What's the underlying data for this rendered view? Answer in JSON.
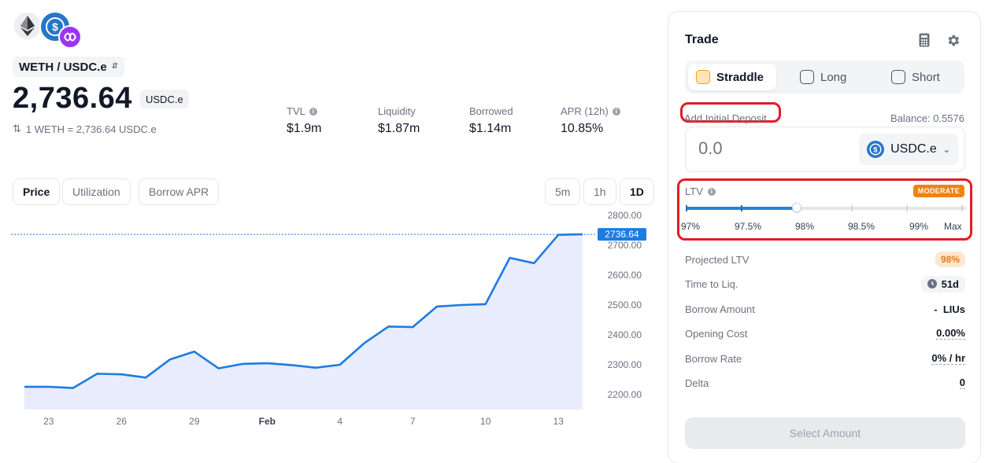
{
  "pair": {
    "label": "WETH / USDC.e"
  },
  "price": {
    "value": "2,736.64",
    "unit": "USDC.e",
    "rate": "1 WETH = 2,736.64 USDC.e"
  },
  "stats": [
    {
      "label": "TVL",
      "value": "$1.9m",
      "info": true
    },
    {
      "label": "Liquidity",
      "value": "$1.87m",
      "info": false
    },
    {
      "label": "Borrowed",
      "value": "$1.14m",
      "info": false
    },
    {
      "label": "APR (12h)",
      "value": "10.85%",
      "info": true
    }
  ],
  "chart_tabs": [
    "Price",
    "Utilization",
    "Borrow APR"
  ],
  "active_chart_tab": "Price",
  "timeframes": [
    "5m",
    "1h",
    "1D"
  ],
  "active_timeframe": "1D",
  "chart_data": {
    "type": "area",
    "title": "",
    "xlabel": "",
    "ylabel": "",
    "x_ticks": [
      "23",
      "26",
      "29",
      "Feb",
      "4",
      "7",
      "10",
      "13"
    ],
    "y_ticks": [
      2200,
      2300,
      2400,
      2500,
      2600,
      2700,
      2800
    ],
    "y_tick_labels": [
      "2200.00",
      "2300.00",
      "2400.00",
      "2500.00",
      "2600.00",
      "2700.00",
      "2800.00"
    ],
    "ylim": [
      2150,
      2800
    ],
    "x": [
      "Jan 22",
      "Jan 23",
      "Jan 24",
      "Jan 25",
      "Jan 26",
      "Jan 27",
      "Jan 28",
      "Jan 29",
      "Jan 30",
      "Jan 31",
      "Feb 1",
      "Feb 2",
      "Feb 3",
      "Feb 4",
      "Feb 5",
      "Feb 6",
      "Feb 7",
      "Feb 8",
      "Feb 9",
      "Feb 10",
      "Feb 11",
      "Feb 12",
      "Feb 13",
      "Feb 14"
    ],
    "values": [
      2226,
      2226,
      2222,
      2270,
      2268,
      2257,
      2318,
      2344,
      2288,
      2303,
      2305,
      2299,
      2290,
      2300,
      2372,
      2428,
      2426,
      2495,
      2500,
      2503,
      2658,
      2640,
      2735,
      2736.64
    ],
    "current_label": "2736.64",
    "current_value": 2736.64,
    "line_color": "#1e7be0",
    "fill_color": "#e8ecfd",
    "grid": false
  },
  "trade": {
    "title": "Trade",
    "modes": [
      "Straddle",
      "Long",
      "Short"
    ],
    "active_mode": "Straddle",
    "deposit_label": "Add Initial Deposit",
    "balance": "Balance: 0.5576",
    "amount_placeholder": "0.0",
    "token": "USDC.e",
    "ltv_label": "LTV",
    "risk_badge": "MODERATE",
    "ltv_marks": [
      "97%",
      "97.5%",
      "98%",
      "98.5%",
      "99%",
      "Max"
    ],
    "ltv_selected_index": 2,
    "rows": {
      "projected_ltv": {
        "label": "Projected LTV",
        "value": "98%"
      },
      "time_to_liq": {
        "label": "Time to Liq.",
        "value": "51d"
      },
      "borrow_amount": {
        "label": "Borrow Amount",
        "value": "-  LIUs"
      },
      "opening_cost": {
        "label": "Opening Cost",
        "value": "0.00%"
      },
      "borrow_rate": {
        "label": "Borrow Rate",
        "value": "0% / hr"
      },
      "delta": {
        "label": "Delta",
        "value": "0"
      }
    },
    "submit_label": "Select Amount"
  },
  "colors": {
    "accent": "#1e7be0",
    "highlight": "#e11d22",
    "moderate": "#f0820f",
    "usdc": "#2775ca"
  }
}
